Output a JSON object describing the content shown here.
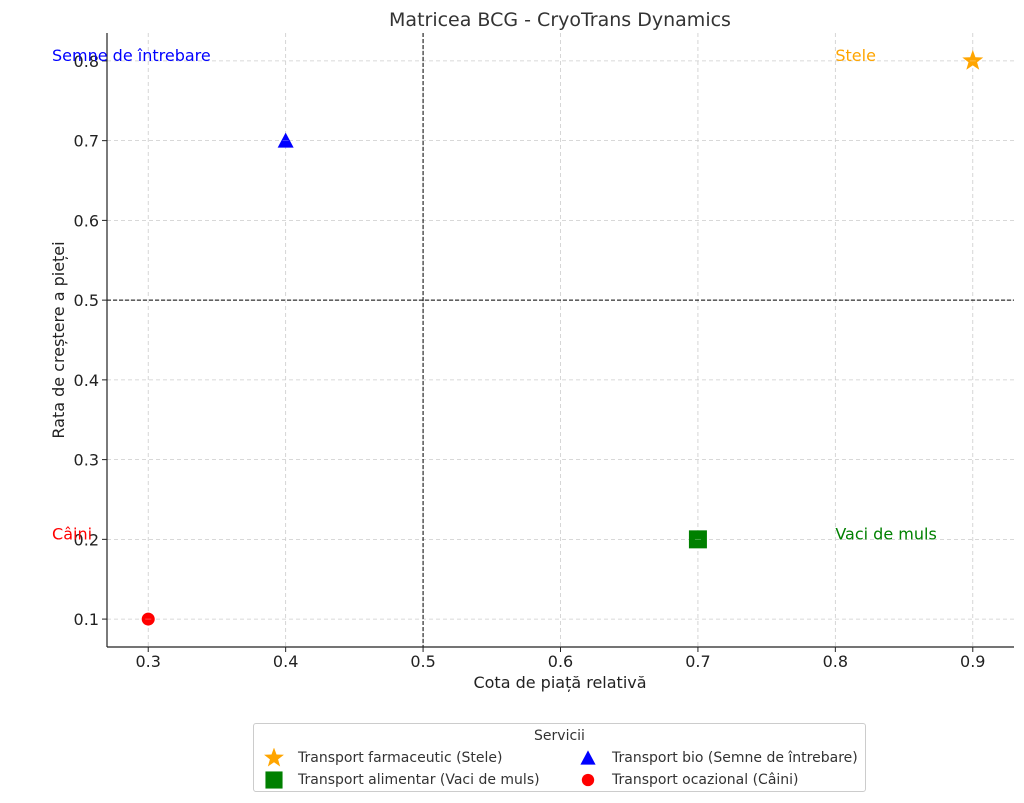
{
  "chart_data": {
    "type": "scatter",
    "title": "Matricea BCG - CryoTrans Dynamics",
    "xlabel": "Cota de piață relativă",
    "ylabel": "Rata de creștere a pieței",
    "xlim": [
      0.27,
      0.93
    ],
    "ylim": [
      0.065,
      0.835
    ],
    "x_ticks": [
      "0.3",
      "0.4",
      "0.5",
      "0.6",
      "0.7",
      "0.8",
      "0.9"
    ],
    "y_ticks": [
      "0.1",
      "0.2",
      "0.3",
      "0.4",
      "0.5",
      "0.6",
      "0.7",
      "0.8"
    ],
    "grid": true,
    "divider_lines": {
      "x": 0.5,
      "y": 0.5
    },
    "series": [
      {
        "name": "Transport farmaceutic (Stele)",
        "marker": "star",
        "color": "#FFA500",
        "x": [
          0.9
        ],
        "y": [
          0.8
        ]
      },
      {
        "name": "Transport alimentar (Vaci de muls)",
        "marker": "square",
        "color": "#008000",
        "x": [
          0.7
        ],
        "y": [
          0.2
        ]
      },
      {
        "name": "Transport bio (Semne de întrebare)",
        "marker": "triangle",
        "color": "#0000FF",
        "x": [
          0.4
        ],
        "y": [
          0.7
        ]
      },
      {
        "name": "Transport ocazional (Câini)",
        "marker": "circle",
        "color": "#FF0000",
        "x": [
          0.3
        ],
        "y": [
          0.1
        ]
      }
    ],
    "annotations": [
      {
        "text": "Semne de întrebare",
        "color": "#0000FF",
        "x": 0.23,
        "y": 0.8
      },
      {
        "text": "Stele",
        "color": "#FFA500",
        "x": 0.8,
        "y": 0.8
      },
      {
        "text": "Câini",
        "color": "#FF0000",
        "x": 0.23,
        "y": 0.2
      },
      {
        "text": "Vaci de muls",
        "color": "#008000",
        "x": 0.8,
        "y": 0.2
      }
    ],
    "legend": {
      "title": "Servicii",
      "placement": "bottom-center"
    }
  }
}
